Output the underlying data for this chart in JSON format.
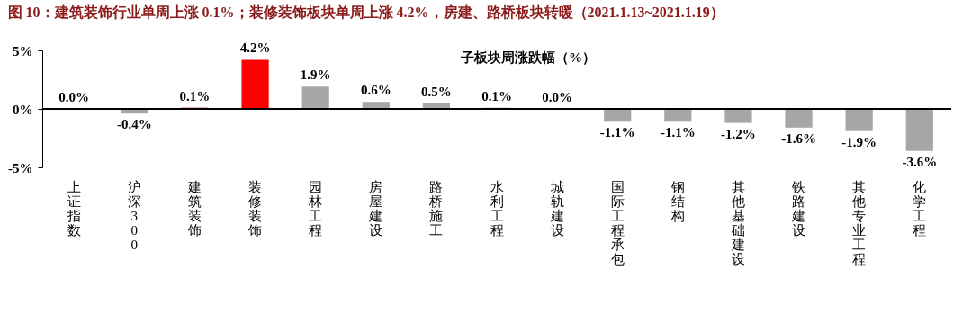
{
  "chart_data": {
    "type": "bar",
    "title": "图 10：建筑装饰行业单周上涨 0.1%；装修装饰板块单周上涨 4.2%，房建、路桥板块转暖（2021.1.13~2021.1.19）",
    "categories": [
      "上证指数",
      "沪深300",
      "建筑装饰",
      "装修装饰",
      "园林工程",
      "房屋建设",
      "路桥施工",
      "水利工程",
      "城轨建设",
      "国际工程承包",
      "钢结构",
      "其他基础建设",
      "铁路建设",
      "其他专业工程",
      "化学工程"
    ],
    "values": [
      0.0,
      -0.4,
      0.1,
      4.2,
      1.9,
      0.6,
      0.5,
      0.1,
      0.0,
      -1.1,
      -1.1,
      -1.2,
      -1.6,
      -1.9,
      -3.6
    ],
    "value_labels": [
      "0.0%",
      "-0.4%",
      "0.1%",
      "4.2%",
      "1.9%",
      "0.6%",
      "0.5%",
      "0.1%",
      "0.0%",
      "-1.1%",
      "-1.1%",
      "-1.2%",
      "-1.6%",
      "-1.9%",
      "-3.6%"
    ],
    "colors": [
      "#a6a6a6",
      "#a6a6a6",
      "#c00000",
      "#ff0000",
      "#a6a6a6",
      "#a6a6a6",
      "#a6a6a6",
      "#a6a6a6",
      "#a6a6a6",
      "#a6a6a6",
      "#a6a6a6",
      "#a6a6a6",
      "#a6a6a6",
      "#a6a6a6",
      "#a6a6a6"
    ],
    "ylim": [
      -5,
      5
    ],
    "yticks": [
      {
        "value": -5,
        "label": "-5%"
      },
      {
        "value": 0,
        "label": "0%"
      },
      {
        "value": 5,
        "label": "5%"
      }
    ],
    "annotations": [
      "子板块周涨跌幅（%）"
    ]
  }
}
